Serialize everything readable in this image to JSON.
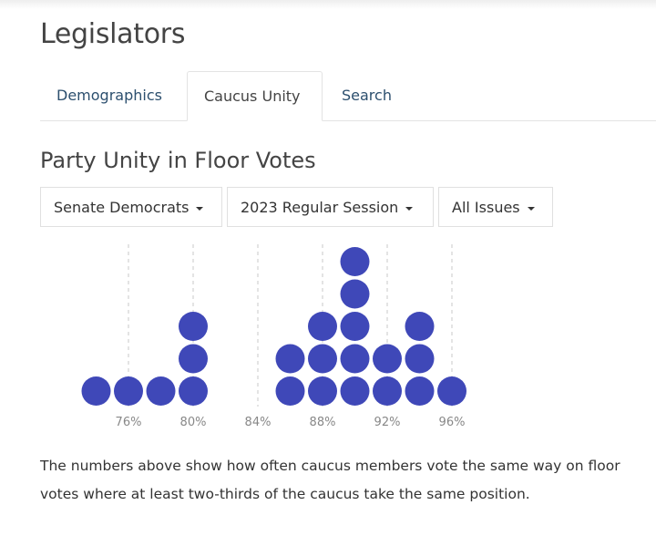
{
  "header": {
    "title": "Legislators"
  },
  "tabs": [
    {
      "label": "Demographics",
      "active": false
    },
    {
      "label": "Caucus Unity",
      "active": true
    },
    {
      "label": "Search",
      "active": false
    }
  ],
  "section": {
    "title": "Party Unity in Floor Votes"
  },
  "filters": {
    "caucus": "Senate Democrats",
    "session": "2023 Regular Session",
    "issues": "All Issues"
  },
  "chart_data": {
    "type": "scatter",
    "subtype": "dot-plot",
    "x": [
      74,
      76,
      78,
      80,
      86,
      88,
      90,
      92,
      94,
      96
    ],
    "counts": [
      1,
      1,
      1,
      3,
      2,
      3,
      5,
      2,
      3,
      1
    ],
    "x_ticks": [
      "76%",
      "80%",
      "84%",
      "88%",
      "92%",
      "96%"
    ],
    "x_tick_values": [
      76,
      80,
      84,
      88,
      92,
      96
    ],
    "xlim": [
      73,
      97
    ],
    "grid": "vertical dashed",
    "dot_color": "#3f48b8"
  },
  "description": "The numbers above show how often caucus members vote the same way on floor votes where at least two-thirds of the caucus take the same position."
}
